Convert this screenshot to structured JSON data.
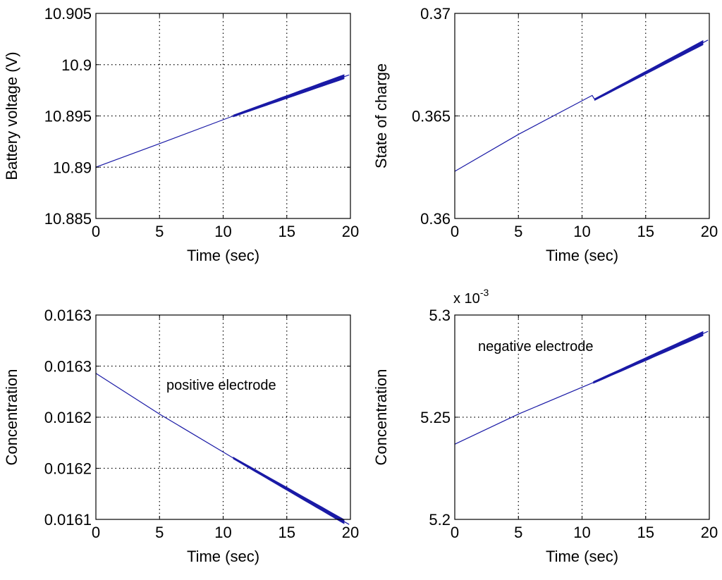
{
  "colors": {
    "line": "#1a1aa6",
    "axes": "#000000",
    "grid": "#000000",
    "background": "#ffffff"
  },
  "chart_data": [
    {
      "type": "line",
      "xlabel": "Time (sec)",
      "ylabel": "Battery voltage (V)",
      "xlim": [
        0,
        20
      ],
      "ylim": [
        10.885,
        10.905
      ],
      "xticks": [
        "0",
        "5",
        "10",
        "15",
        "20"
      ],
      "yticks": [
        "10.885",
        "10.89",
        "10.895",
        "10.9",
        "10.905"
      ],
      "grid": true,
      "exponent_label": "",
      "annotation": "",
      "x": [
        0,
        5,
        10.8,
        19.9
      ],
      "y": [
        10.89,
        10.8923,
        10.895,
        10.899
      ],
      "band_x": [
        10.8,
        19.5
      ],
      "band_width": [
        2.5,
        6
      ]
    },
    {
      "type": "line",
      "xlabel": "Time (sec)",
      "ylabel": "State of charge",
      "xlim": [
        0,
        20
      ],
      "ylim": [
        0.36,
        0.37
      ],
      "xticks": [
        "0",
        "5",
        "10",
        "15",
        "20"
      ],
      "yticks": [
        "0.36",
        "0.365",
        "0.37"
      ],
      "grid": true,
      "exponent_label": "",
      "annotation": "",
      "x": [
        0,
        5,
        10.8,
        11.0,
        19.9
      ],
      "y": [
        0.3623,
        0.3641,
        0.366,
        0.3658,
        0.3687
      ],
      "band_x": [
        11.0,
        19.5
      ],
      "band_width": [
        2.5,
        6
      ]
    },
    {
      "type": "line",
      "xlabel": "Time (sec)",
      "ylabel": "Concentration",
      "xlim": [
        0,
        20
      ],
      "ylim": [
        0.01612,
        0.01632
      ],
      "xticks": [
        "0",
        "5",
        "10",
        "15",
        "20"
      ],
      "yticks": [
        "0.0161",
        "0.0162",
        "0.0162",
        "0.0163",
        "0.0163"
      ],
      "grid": true,
      "exponent_label": "",
      "annotation": "positive electrode",
      "x": [
        0,
        5,
        10.8,
        19.9
      ],
      "y": [
        0.016263,
        0.016223,
        0.01618,
        0.016115
      ],
      "band_x": [
        10.8,
        19.5
      ],
      "band_width": [
        2.5,
        6
      ]
    },
    {
      "type": "line",
      "xlabel": "Time (sec)",
      "ylabel": "Concentration",
      "xlim": [
        0,
        20
      ],
      "ylim": [
        5.2,
        5.3
      ],
      "xticks": [
        "0",
        "5",
        "10",
        "15",
        "20"
      ],
      "yticks": [
        "5.2",
        "5.25",
        "5.3"
      ],
      "grid": true,
      "exponent_label": "x 10",
      "exponent_power": "-3",
      "annotation": "negative electrode",
      "x": [
        0,
        5,
        10.9,
        19.9
      ],
      "y": [
        5.2368,
        5.2515,
        5.267,
        5.292
      ],
      "band_x": [
        10.9,
        19.5
      ],
      "band_width": [
        2.5,
        6
      ]
    }
  ]
}
